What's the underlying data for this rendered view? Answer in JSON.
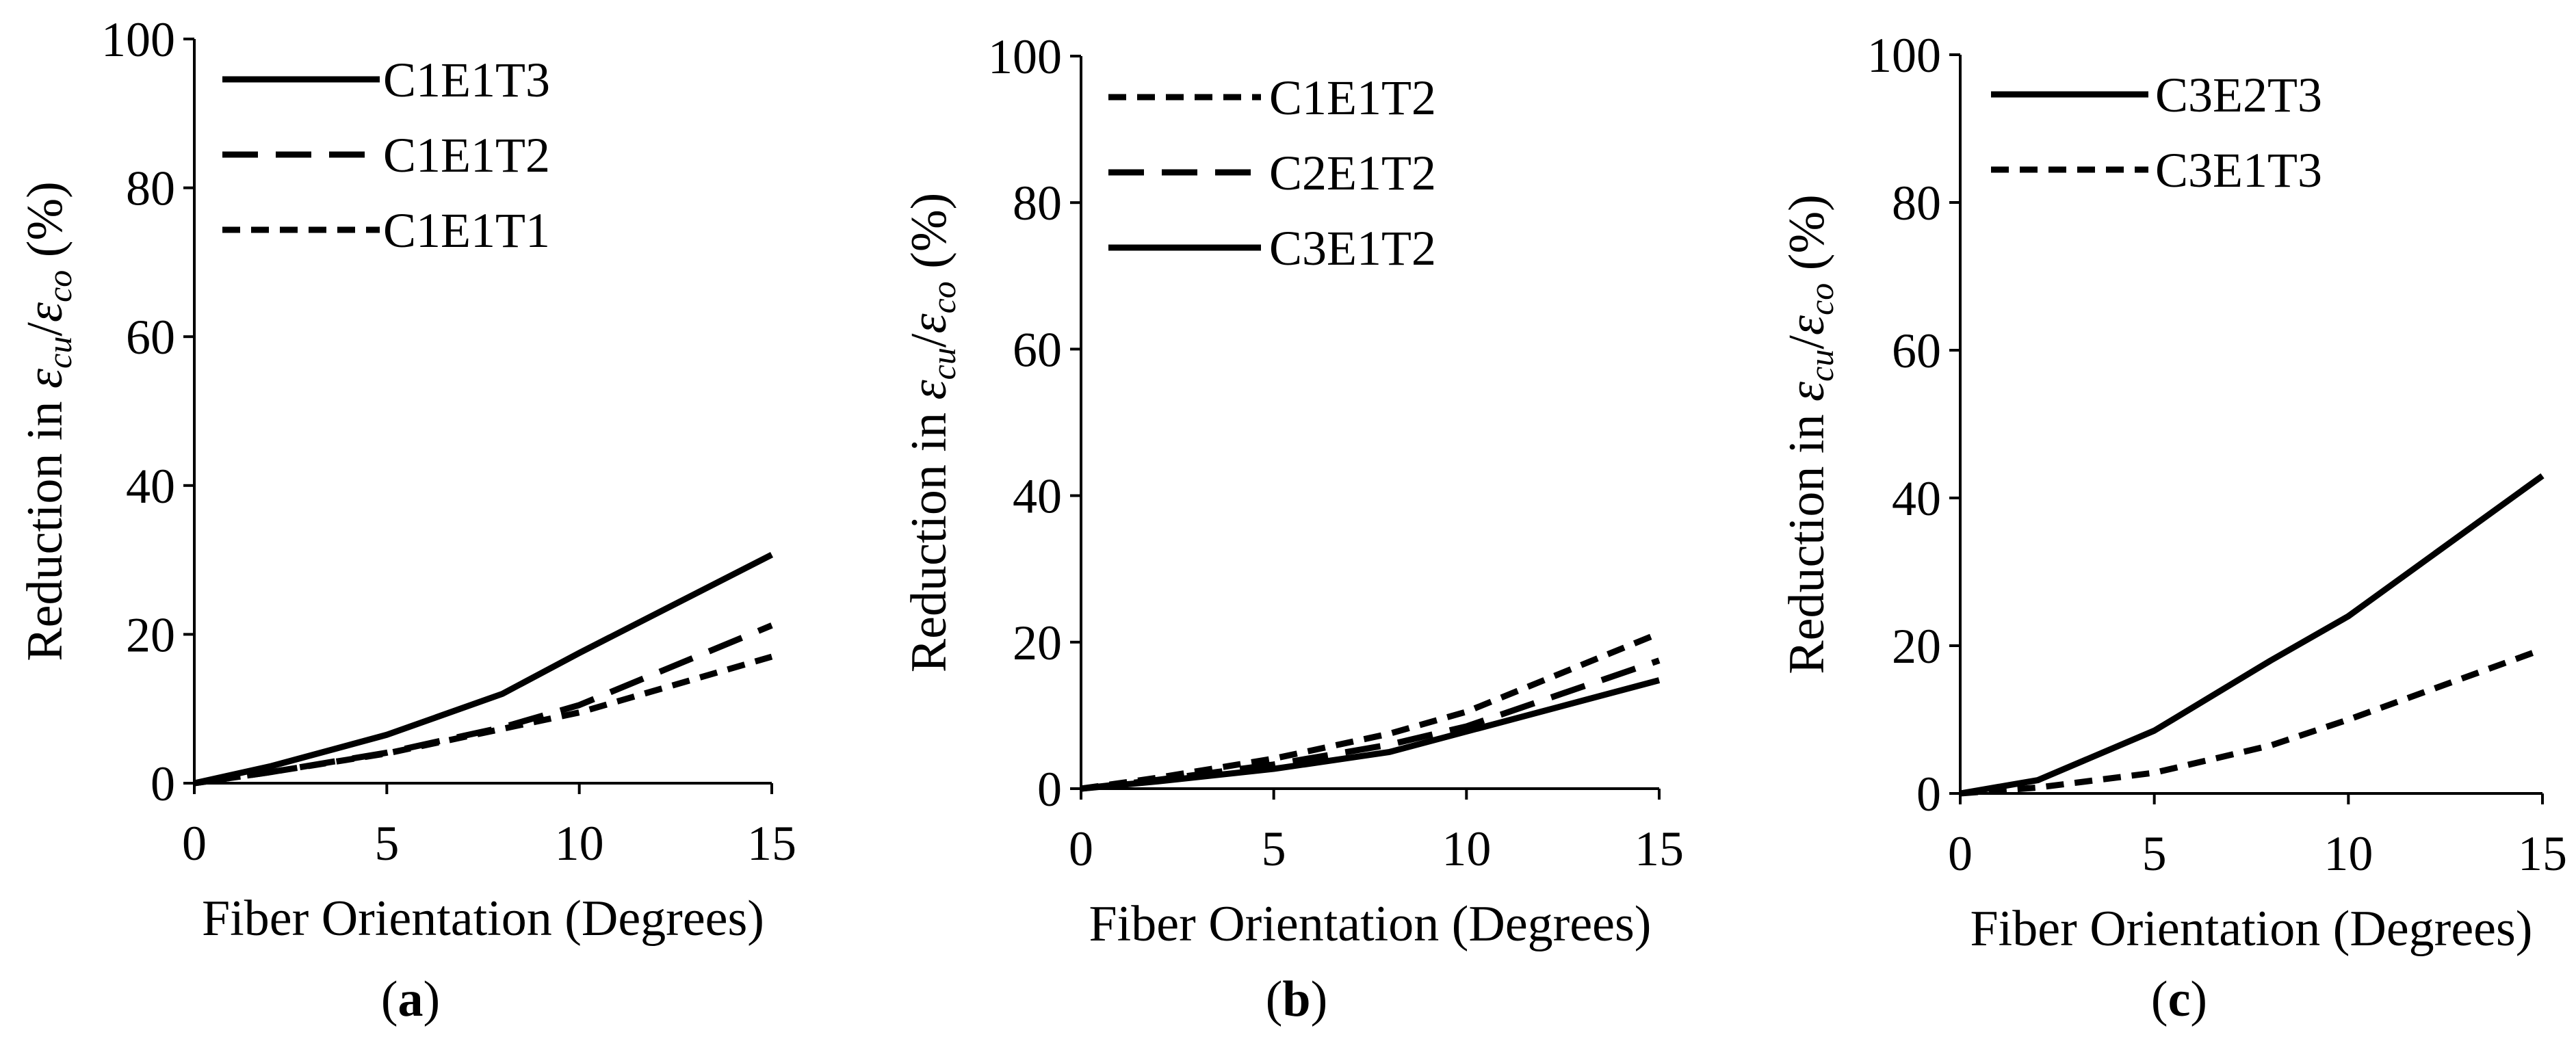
{
  "chart_data": [
    {
      "panel": "a",
      "type": "line",
      "caption": {
        "open": "(",
        "letter": "a",
        "close": ")"
      },
      "xlabel": "Fiber Orientation (Degrees)",
      "ylabel": {
        "prefix": "Reduction in ",
        "num": "ε",
        "num_sub": "cu",
        "slash": "/",
        "den": "ε",
        "den_sub": "co",
        "suffix": " (%)"
      },
      "xlim": [
        0,
        15
      ],
      "ylim": [
        0,
        100
      ],
      "xticks": [
        0,
        5,
        10,
        15
      ],
      "yticks": [
        0,
        20,
        40,
        60,
        80,
        100
      ],
      "legend_position": "top-left",
      "series": [
        {
          "name": "C1E1T3",
          "style": "solid",
          "x": [
            0,
            2,
            5,
            8,
            10,
            15
          ],
          "y": [
            0,
            2.3,
            6.5,
            12,
            17.5,
            30.7
          ]
        },
        {
          "name": "C1E1T2",
          "style": "long-dash",
          "x": [
            0,
            2,
            5,
            8,
            10,
            15
          ],
          "y": [
            0,
            1.5,
            4.1,
            7.5,
            10.5,
            21.2
          ]
        },
        {
          "name": "C1E1T1",
          "style": "short-dash",
          "x": [
            0,
            2,
            5,
            8,
            10,
            15
          ],
          "y": [
            0,
            1.5,
            4.0,
            7.3,
            9.5,
            17.0
          ]
        }
      ]
    },
    {
      "panel": "b",
      "type": "line",
      "caption": {
        "open": "(",
        "letter": "b",
        "close": ")"
      },
      "xlabel": "Fiber Orientation (Degrees)",
      "ylabel": {
        "prefix": "Reduction in ",
        "num": "ε",
        "num_sub": "cu",
        "slash": "/",
        "den": "ε",
        "den_sub": "co",
        "suffix": " (%)"
      },
      "xlim": [
        0,
        15
      ],
      "ylim": [
        0,
        100
      ],
      "xticks": [
        0,
        5,
        10,
        15
      ],
      "yticks": [
        0,
        20,
        40,
        60,
        80,
        100
      ],
      "legend_position": "top-left",
      "series": [
        {
          "name": "C1E1T2",
          "style": "short-dash",
          "x": [
            0,
            2,
            5,
            8,
            10,
            15
          ],
          "y": [
            0,
            1.5,
            4.1,
            7.5,
            10.5,
            21.2
          ]
        },
        {
          "name": "C2E1T2",
          "style": "long-dash",
          "x": [
            0,
            2,
            5,
            8,
            10,
            15
          ],
          "y": [
            0,
            1.2,
            3.3,
            6.0,
            8.5,
            17.5
          ]
        },
        {
          "name": "C3E1T2",
          "style": "solid",
          "x": [
            0,
            2,
            5,
            8,
            10,
            15
          ],
          "y": [
            0,
            1.0,
            2.7,
            5.0,
            7.8,
            14.8
          ]
        }
      ]
    },
    {
      "panel": "c",
      "type": "line",
      "caption": {
        "open": "(",
        "letter": "c",
        "close": ")"
      },
      "xlabel": "Fiber Orientation (Degrees)",
      "ylabel": {
        "prefix": "Reduction in ",
        "num": "ε",
        "num_sub": "cu",
        "slash": "/",
        "den": "ε",
        "den_sub": "co",
        "suffix": " (%)"
      },
      "xlim": [
        0,
        15
      ],
      "ylim": [
        0,
        100
      ],
      "xticks": [
        0,
        5,
        10,
        15
      ],
      "yticks": [
        0,
        20,
        40,
        60,
        80,
        100
      ],
      "legend_position": "top-left",
      "series": [
        {
          "name": "C3E2T3",
          "style": "solid",
          "x": [
            0,
            2,
            5,
            8,
            10,
            15
          ],
          "y": [
            0,
            1.8,
            8.5,
            18,
            24,
            43
          ]
        },
        {
          "name": "C3E1T3",
          "style": "short-dash",
          "x": [
            0,
            2,
            5,
            8,
            10,
            15
          ],
          "y": [
            0,
            0.8,
            2.8,
            6.5,
            10,
            19.5
          ]
        }
      ]
    }
  ]
}
